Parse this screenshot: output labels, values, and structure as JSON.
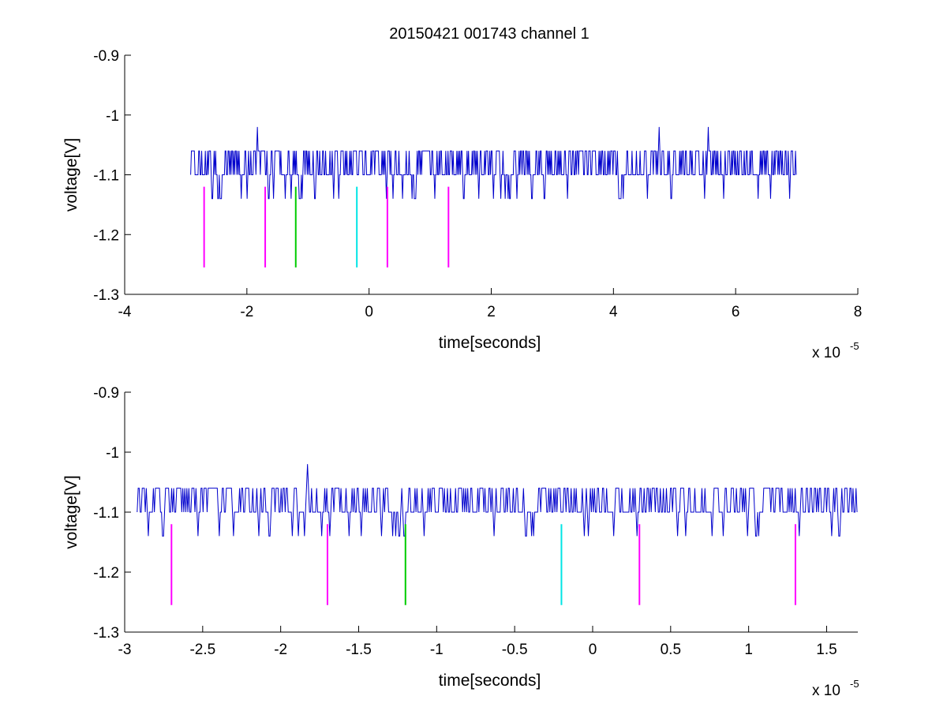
{
  "figure": {
    "title": "20150421 001743 channel 1"
  },
  "chart_data": [
    {
      "type": "line",
      "title": "20150421 001743 channel 1",
      "xlabel": "time[seconds]",
      "ylabel": "voltage[V]",
      "x_exponent_label": "x 10",
      "x_exponent": "-5",
      "x_scale": 1e-05,
      "xlim": [
        -4,
        8
      ],
      "ylim": [
        -1.3,
        -0.9
      ],
      "x_ticks": [
        -4,
        -2,
        0,
        2,
        4,
        6,
        8
      ],
      "x_tick_labels": [
        "-4",
        "-2",
        "0",
        "2",
        "4",
        "6",
        "8"
      ],
      "y_ticks": [
        -0.9,
        -1.0,
        -1.1,
        -1.2,
        -1.3
      ],
      "y_tick_labels": [
        "-0.9",
        "-1",
        "-1.1",
        "-1.2",
        "-1.3"
      ],
      "grid": false,
      "signal": {
        "color": "#0000cc",
        "x_range": [
          -2.92,
          7.0
        ],
        "baseline": -1.1,
        "levels": [
          -1.06,
          -1.1,
          -1.14
        ],
        "peaks": [
          {
            "x": -1.83,
            "y": -1.02
          },
          {
            "x": 4.75,
            "y": -1.02
          },
          {
            "x": 5.55,
            "y": -1.02
          }
        ]
      },
      "markers": [
        {
          "x": -2.7,
          "y_top": -1.12,
          "y_bottom": -1.255,
          "color": "#ff00ff"
        },
        {
          "x": -1.7,
          "y_top": -1.12,
          "y_bottom": -1.255,
          "color": "#ff00ff"
        },
        {
          "x": -1.2,
          "y_top": -1.12,
          "y_bottom": -1.255,
          "color": "#00cc00"
        },
        {
          "x": -0.2,
          "y_top": -1.12,
          "y_bottom": -1.255,
          "color": "#00e5e5"
        },
        {
          "x": 0.3,
          "y_top": -1.12,
          "y_bottom": -1.255,
          "color": "#ff00ff"
        },
        {
          "x": 1.3,
          "y_top": -1.12,
          "y_bottom": -1.255,
          "color": "#ff00ff"
        }
      ]
    },
    {
      "type": "line",
      "title": "",
      "xlabel": "time[seconds]",
      "ylabel": "voltage[V]",
      "x_exponent_label": "x 10",
      "x_exponent": "-5",
      "x_scale": 1e-05,
      "xlim": [
        -3.0,
        1.7
      ],
      "ylim": [
        -1.3,
        -0.9
      ],
      "x_ticks": [
        -3,
        -2.5,
        -2,
        -1.5,
        -1,
        -0.5,
        0,
        0.5,
        1,
        1.5
      ],
      "x_tick_labels": [
        "-3",
        "-2.5",
        "-2",
        "-1.5",
        "-1",
        "-0.5",
        "0",
        "0.5",
        "1",
        "1.5"
      ],
      "y_ticks": [
        -0.9,
        -1.0,
        -1.1,
        -1.2,
        -1.3
      ],
      "y_tick_labels": [
        "-0.9",
        "-1",
        "-1.1",
        "-1.2",
        "-1.3"
      ],
      "grid": false,
      "signal": {
        "color": "#0000cc",
        "x_range": [
          -2.92,
          1.7
        ],
        "baseline": -1.1,
        "levels": [
          -1.06,
          -1.1,
          -1.14
        ],
        "peaks": [
          {
            "x": -1.83,
            "y": -1.02
          }
        ]
      },
      "markers": [
        {
          "x": -2.7,
          "y_top": -1.12,
          "y_bottom": -1.255,
          "color": "#ff00ff"
        },
        {
          "x": -1.7,
          "y_top": -1.12,
          "y_bottom": -1.255,
          "color": "#ff00ff"
        },
        {
          "x": -1.2,
          "y_top": -1.12,
          "y_bottom": -1.255,
          "color": "#00cc00"
        },
        {
          "x": -0.2,
          "y_top": -1.12,
          "y_bottom": -1.255,
          "color": "#00e5e5"
        },
        {
          "x": 0.3,
          "y_top": -1.12,
          "y_bottom": -1.255,
          "color": "#ff00ff"
        },
        {
          "x": 1.3,
          "y_top": -1.12,
          "y_bottom": -1.255,
          "color": "#ff00ff"
        }
      ]
    }
  ]
}
